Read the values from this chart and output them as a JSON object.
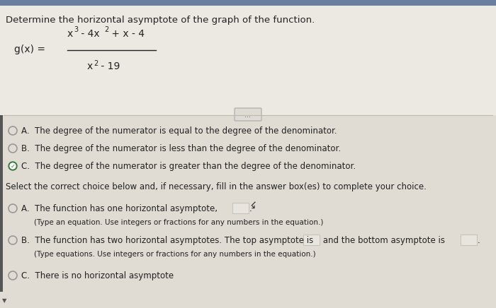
{
  "title": "Determine the horizontal asymptote of the graph of the function.",
  "option_A1": "A.  The degree of the numerator is equal to the degree of the denominator.",
  "option_B1": "B.  The degree of the numerator is less than the degree of the denominator.",
  "option_C1": "C.  The degree of the numerator is greater than the degree of the denominator.",
  "section2_title": "Select the correct choice below and, if necessary, fill in the answer box(es) to complete your choice.",
  "option_A2_line1": "A.  The function has one horizontal asymptote,",
  "option_A2_line2": "(Type an equation. Use integers or fractions for any numbers in the equation.)",
  "option_B2_line1": "B.  The function has two horizontal asymptotes. The top asymptote is",
  "option_B2_mid": "and the bottom asymptote is",
  "option_B2_line2": "(Type equations. Use integers or fractions for any numbers in the equation.)",
  "option_C2": "C.  There is no horizontal asymptote",
  "divider_button_text": "...",
  "bg_top": "#ece8e2",
  "bg_bottom": "#e0dbd3",
  "text_color": "#222222",
  "radio_color": "#999999",
  "check_color": "#3a7a3a",
  "line_color": "#bbbbaa",
  "border_left_color": "#555555",
  "box_color": "#c8c4bc",
  "top_strip_color": "#6a7fa0"
}
